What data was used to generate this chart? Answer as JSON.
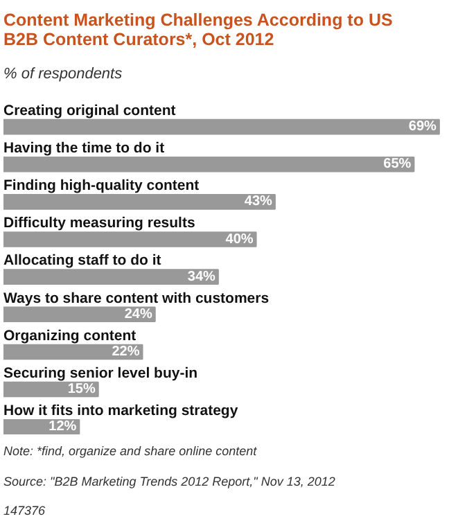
{
  "chart_data": {
    "type": "bar",
    "orientation": "horizontal",
    "title": "Content Marketing Challenges According to US B2B Content Curators*, Oct 2012",
    "subtitle": "% of respondents",
    "categories": [
      "Creating original content",
      "Having the time to do it",
      "Finding high-quality content",
      "Difficulty measuring results",
      "Allocating staff to do it",
      "Ways to share content with customers",
      "Organizing content",
      "Securing senior level buy-in",
      "How it fits into marketing strategy"
    ],
    "values": [
      69,
      65,
      43,
      40,
      34,
      24,
      22,
      15,
      12
    ],
    "color": "#999999",
    "value_labels": [
      "69%",
      "65%",
      "43%",
      "40%",
      "34%",
      "24%",
      "22%",
      "15%",
      "12%"
    ],
    "annotations": [
      "Note: *find, organize and share online content",
      "Source: \"B2B Marketing Trends 2012 Report,\" Nov 13, 2012",
      "147376"
    ],
    "grid": false
  }
}
